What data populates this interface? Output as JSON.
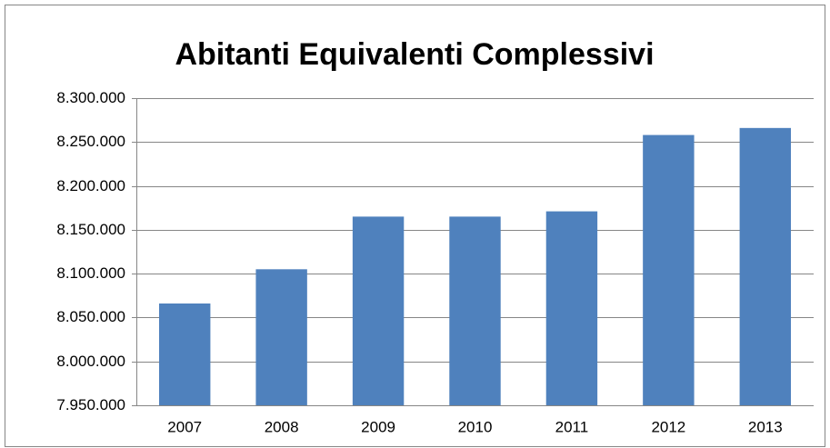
{
  "chart_data": {
    "type": "bar",
    "title": "Abitanti Equivalenti Complessivi",
    "categories": [
      "2007",
      "2008",
      "2009",
      "2010",
      "2011",
      "2012",
      "2013"
    ],
    "values": [
      8066000,
      8105000,
      8165000,
      8165000,
      8171000,
      8258000,
      8266000
    ],
    "color": "#4f81bd",
    "ylim": [
      7950000,
      8300000
    ],
    "yticks": [
      {
        "value": 7950000,
        "label": "7.950.000"
      },
      {
        "value": 8000000,
        "label": "8.000.000"
      },
      {
        "value": 8050000,
        "label": "8.050.000"
      },
      {
        "value": 8100000,
        "label": "8.100.000"
      },
      {
        "value": 8150000,
        "label": "8.150.000"
      },
      {
        "value": 8200000,
        "label": "8.200.000"
      },
      {
        "value": 8250000,
        "label": "8.250.000"
      },
      {
        "value": 8300000,
        "label": "8.300.000"
      }
    ],
    "grid": true
  }
}
